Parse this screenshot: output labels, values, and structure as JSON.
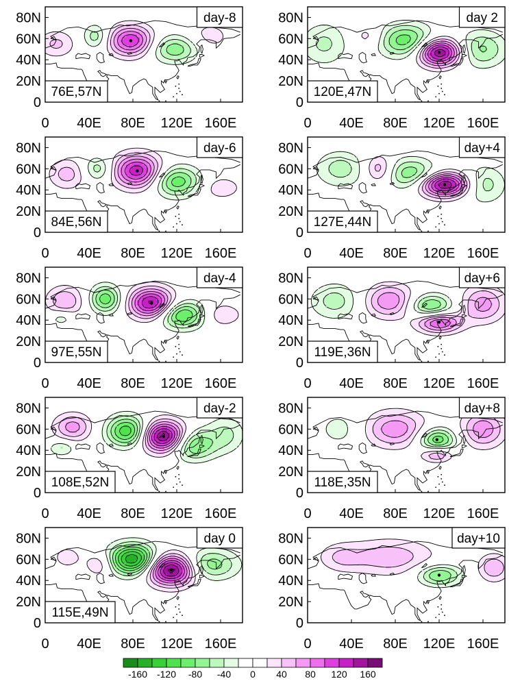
{
  "chart_data": {
    "type": "heatmap",
    "description_units": "composite anomaly, shaded with contours (negative dashed)",
    "y_ticks": [
      "0",
      "20N",
      "40N",
      "60N",
      "80N"
    ],
    "x_ticks": [
      "0",
      "40E",
      "80E",
      "120E",
      "160E"
    ],
    "colorbar": {
      "labels": [
        "-160",
        "-120",
        "-80",
        "-40",
        "0",
        "40",
        "80",
        "120",
        "160"
      ],
      "levels": [
        -180,
        -160,
        -140,
        -120,
        -100,
        -80,
        -60,
        -40,
        -20,
        0,
        20,
        40,
        60,
        80,
        100,
        120,
        140,
        160,
        180
      ],
      "colors": [
        "#0c5a0c",
        "#1a8c1a",
        "#27b027",
        "#36d136",
        "#4ee34e",
        "#6cf06c",
        "#93f593",
        "#bdf9bd",
        "#e3fce3",
        "#ffffff",
        "#ffffff",
        "#fde4fd",
        "#f9c1f9",
        "#f49af4",
        "#ee6fee",
        "#df3fdf",
        "#c620c6",
        "#a3139f",
        "#780d75",
        "#4a0a4a"
      ]
    },
    "panels": [
      {
        "label": "day-8",
        "center": "76E,57N",
        "centers": [
          {
            "lon": 78,
            "lat": 58,
            "amp": 120,
            "rx": 14,
            "ry": 10
          },
          {
            "lon": 118,
            "lat": 50,
            "amp": -75,
            "rx": 15,
            "ry": 9
          },
          {
            "lon": 46,
            "lat": 62,
            "amp": -55,
            "rx": 8,
            "ry": 8
          },
          {
            "lon": 10,
            "lat": 55,
            "amp": 45,
            "rx": 12,
            "ry": 9
          },
          {
            "lon": 150,
            "lat": 62,
            "amp": 30,
            "rx": 14,
            "ry": 10
          }
        ]
      },
      {
        "label": "day 2",
        "center": "120E,47N",
        "centers": [
          {
            "lon": 120,
            "lat": 47,
            "amp": 170,
            "rx": 14,
            "ry": 9
          },
          {
            "lon": 90,
            "lat": 58,
            "amp": -95,
            "rx": 18,
            "ry": 11
          },
          {
            "lon": 158,
            "lat": 50,
            "amp": -65,
            "rx": 16,
            "ry": 12
          },
          {
            "lon": 55,
            "lat": 62,
            "amp": 35,
            "rx": 10,
            "ry": 8
          },
          {
            "lon": 15,
            "lat": 55,
            "amp": -45,
            "rx": 15,
            "ry": 14
          }
        ]
      },
      {
        "label": "day-6",
        "center": "84E,56N",
        "centers": [
          {
            "lon": 84,
            "lat": 58,
            "amp": 135,
            "rx": 15,
            "ry": 11
          },
          {
            "lon": 120,
            "lat": 48,
            "amp": -95,
            "rx": 15,
            "ry": 10
          },
          {
            "lon": 48,
            "lat": 60,
            "amp": -55,
            "rx": 9,
            "ry": 8
          },
          {
            "lon": 20,
            "lat": 55,
            "amp": 50,
            "rx": 12,
            "ry": 10
          },
          {
            "lon": 160,
            "lat": 42,
            "amp": 35,
            "rx": 14,
            "ry": 8
          }
        ]
      },
      {
        "label": "day+4",
        "center": "127E,44N",
        "centers": [
          {
            "lon": 125,
            "lat": 45,
            "amp": 165,
            "rx": 16,
            "ry": 8
          },
          {
            "lon": 95,
            "lat": 55,
            "amp": -80,
            "rx": 16,
            "ry": 10
          },
          {
            "lon": 65,
            "lat": 60,
            "amp": 60,
            "rx": 9,
            "ry": 9
          },
          {
            "lon": 30,
            "lat": 60,
            "amp": -50,
            "rx": 16,
            "ry": 12
          },
          {
            "lon": 160,
            "lat": 45,
            "amp": -55,
            "rx": 14,
            "ry": 12
          }
        ]
      },
      {
        "label": "day-4",
        "center": "97E,55N",
        "centers": [
          {
            "lon": 97,
            "lat": 56,
            "amp": 150,
            "rx": 14,
            "ry": 10
          },
          {
            "lon": 125,
            "lat": 45,
            "amp": -110,
            "rx": 15,
            "ry": 9
          },
          {
            "lon": 55,
            "lat": 60,
            "amp": -95,
            "rx": 10,
            "ry": 9
          },
          {
            "lon": 18,
            "lat": 58,
            "amp": 60,
            "rx": 12,
            "ry": 10
          },
          {
            "lon": 160,
            "lat": 45,
            "amp": 40,
            "rx": 14,
            "ry": 8
          },
          {
            "lon": 15,
            "lat": 42,
            "amp": -40,
            "rx": 8,
            "ry": 5
          }
        ]
      },
      {
        "label": "day+6",
        "center": "119E,36N",
        "centers": [
          {
            "lon": 120,
            "lat": 38,
            "amp": 110,
            "rx": 14,
            "ry": 7
          },
          {
            "lon": 112,
            "lat": 53,
            "amp": -90,
            "rx": 14,
            "ry": 8
          },
          {
            "lon": 75,
            "lat": 58,
            "amp": 80,
            "rx": 16,
            "ry": 11
          },
          {
            "lon": 25,
            "lat": 58,
            "amp": -50,
            "rx": 16,
            "ry": 12
          },
          {
            "lon": 160,
            "lat": 55,
            "amp": 70,
            "rx": 14,
            "ry": 12
          }
        ]
      },
      {
        "label": "day-2",
        "center": "108E,52N",
        "centers": [
          {
            "lon": 108,
            "lat": 53,
            "amp": 170,
            "rx": 14,
            "ry": 10
          },
          {
            "lon": 75,
            "lat": 58,
            "amp": -120,
            "rx": 13,
            "ry": 10
          },
          {
            "lon": 135,
            "lat": 45,
            "amp": -90,
            "rx": 14,
            "ry": 10
          },
          {
            "lon": 25,
            "lat": 62,
            "amp": 70,
            "rx": 12,
            "ry": 9
          },
          {
            "lon": 165,
            "lat": 55,
            "amp": -45,
            "rx": 12,
            "ry": 12
          },
          {
            "lon": 15,
            "lat": 42,
            "amp": -45,
            "rx": 8,
            "ry": 5
          }
        ]
      },
      {
        "label": "day+8",
        "center": "118E,35N",
        "centers": [
          {
            "lon": 118,
            "lat": 50,
            "amp": -100,
            "rx": 12,
            "ry": 8
          },
          {
            "lon": 80,
            "lat": 60,
            "amp": 75,
            "rx": 20,
            "ry": 12
          },
          {
            "lon": 118,
            "lat": 36,
            "amp": 70,
            "rx": 10,
            "ry": 5
          },
          {
            "lon": 160,
            "lat": 60,
            "amp": 75,
            "rx": 14,
            "ry": 12
          },
          {
            "lon": 30,
            "lat": 60,
            "amp": -30,
            "rx": 15,
            "ry": 12
          }
        ]
      },
      {
        "label": "day 0",
        "center": "115E,49N",
        "centers": [
          {
            "lon": 115,
            "lat": 50,
            "amp": 180,
            "rx": 15,
            "ry": 10
          },
          {
            "lon": 80,
            "lat": 60,
            "amp": -160,
            "rx": 15,
            "ry": 10
          },
          {
            "lon": 150,
            "lat": 55,
            "amp": -75,
            "rx": 18,
            "ry": 10
          },
          {
            "lon": 50,
            "lat": 55,
            "amp": 45,
            "rx": 9,
            "ry": 8
          },
          {
            "lon": 20,
            "lat": 62,
            "amp": 30,
            "rx": 10,
            "ry": 8
          }
        ]
      },
      {
        "label": "day+10",
        "center": "",
        "centers": [
          {
            "lon": 120,
            "lat": 45,
            "amp": -85,
            "rx": 14,
            "ry": 7
          },
          {
            "lon": 75,
            "lat": 62,
            "amp": 55,
            "rx": 28,
            "ry": 12
          },
          {
            "lon": 170,
            "lat": 52,
            "amp": 60,
            "rx": 10,
            "ry": 9
          },
          {
            "lon": 30,
            "lat": 62,
            "amp": 35,
            "rx": 14,
            "ry": 9
          }
        ]
      }
    ]
  }
}
